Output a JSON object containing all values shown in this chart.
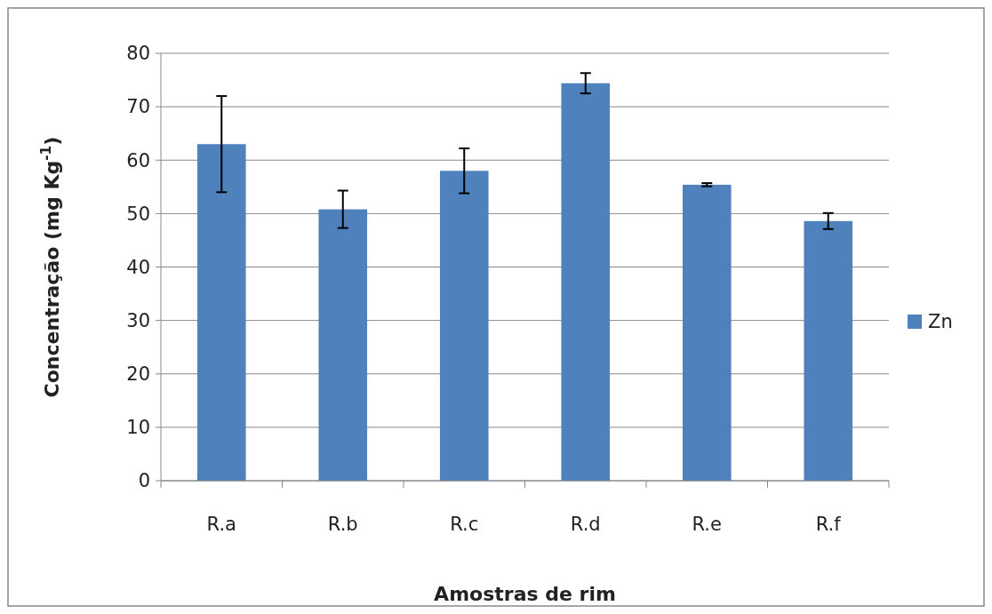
{
  "chart_data": {
    "type": "bar",
    "xlabel": "Amostras de rim",
    "ylabel": "Concentração  (mg Kg$^{-1}$)",
    "categories": [
      "R.a",
      "R.b",
      "R.c",
      "R.d",
      "R.e",
      "R.f"
    ],
    "series": [
      {
        "name": "Zn",
        "color": "#4f81bd",
        "values": [
          63,
          50.8,
          58,
          74.4,
          55.4,
          48.6
        ],
        "errors": [
          9,
          3.5,
          4.2,
          1.9,
          0.3,
          1.5
        ]
      }
    ],
    "ylim": [
      0,
      80
    ],
    "yticks": [
      0,
      10,
      20,
      30,
      40,
      50,
      60,
      70,
      80
    ],
    "grid": "y",
    "legend": "right"
  }
}
